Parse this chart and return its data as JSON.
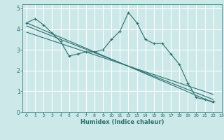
{
  "background_color": "#cce8e8",
  "grid_color": "#ffffff",
  "line_color": "#2d7070",
  "xlabel": "Humidex (Indice chaleur)",
  "xlim": [
    -0.5,
    23
  ],
  "ylim": [
    0,
    5.2
  ],
  "xticks": [
    0,
    1,
    2,
    3,
    4,
    5,
    6,
    7,
    8,
    9,
    10,
    11,
    12,
    13,
    14,
    15,
    16,
    17,
    18,
    19,
    20,
    21,
    22,
    23
  ],
  "yticks": [
    0,
    1,
    2,
    3,
    4,
    5
  ],
  "series": [
    {
      "x": [
        0,
        1,
        2,
        3,
        4,
        5,
        6,
        7,
        8,
        9,
        10,
        11,
        12,
        13,
        14,
        15,
        16,
        17,
        18,
        19,
        20,
        21,
        22
      ],
      "y": [
        4.3,
        4.5,
        4.2,
        3.8,
        3.4,
        2.7,
        2.8,
        2.9,
        2.9,
        3.0,
        3.5,
        3.9,
        4.8,
        4.3,
        3.5,
        3.3,
        3.3,
        2.8,
        2.3,
        1.4,
        0.7,
        0.6,
        0.5
      ],
      "marker": "+"
    },
    {
      "x": [
        0,
        22
      ],
      "y": [
        4.3,
        0.45
      ],
      "marker": null
    },
    {
      "x": [
        0,
        22
      ],
      "y": [
        4.15,
        0.6
      ],
      "marker": null
    },
    {
      "x": [
        0,
        22
      ],
      "y": [
        3.85,
        0.85
      ],
      "marker": null
    }
  ]
}
